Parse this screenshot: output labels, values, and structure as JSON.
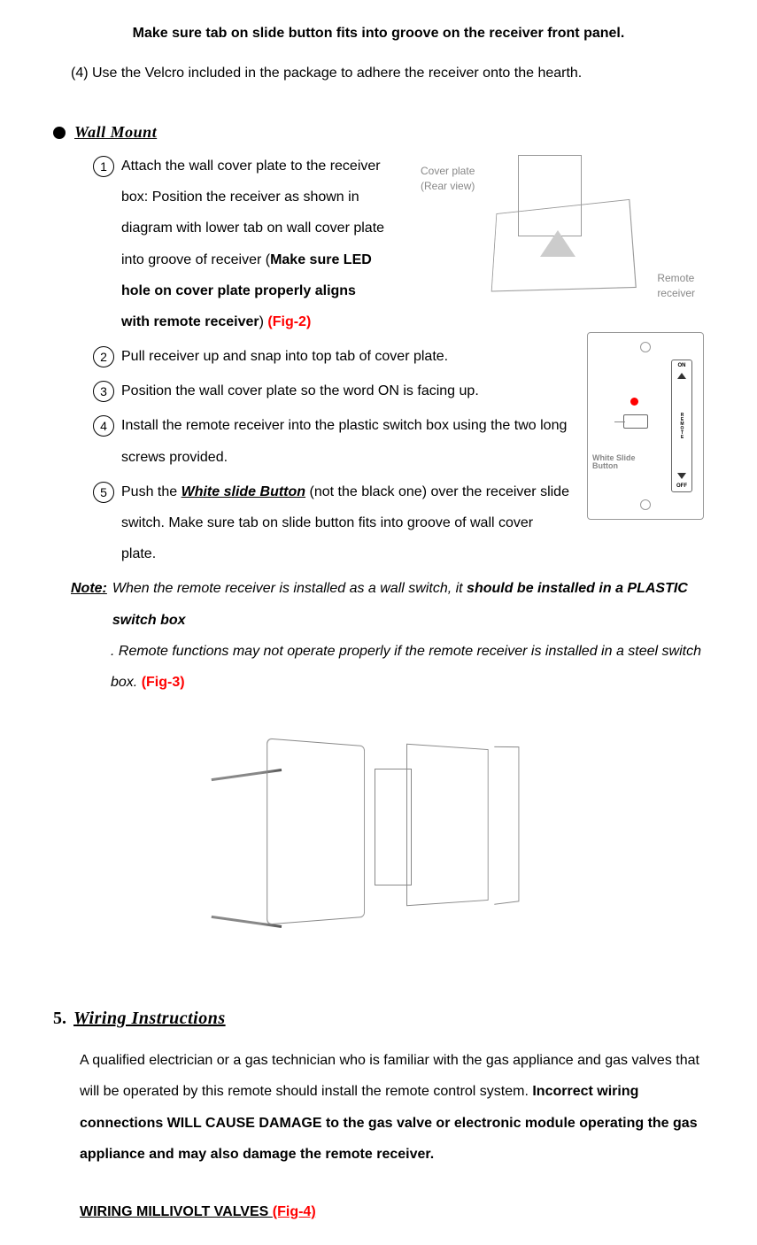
{
  "intro": {
    "line1": "Make sure tab on slide button fits into groove on the receiver front panel.",
    "line2": "(4) Use the Velcro included in the package to adhere the receiver onto the hearth."
  },
  "wall_mount": {
    "title": "Wall Mount",
    "items": [
      {
        "num": "1",
        "text_parts": {
          "a": "Attach the wall cover plate to the receiver box: Position the receiver as shown in diagram with lower tab on wall cover plate into groove of receiver (",
          "b": "Make sure LED hole on cover plate properly aligns with remote receiver",
          "c": ") ",
          "fig": "(Fig-2)"
        }
      },
      {
        "num": "2",
        "text": "Pull receiver up and snap into top tab of cover plate."
      },
      {
        "num": "3",
        "text": "Position the wall cover plate so the word ON is facing up."
      },
      {
        "num": "4",
        "text": "Install the remote receiver into the plastic switch box using the two long screws provided."
      },
      {
        "num": "5",
        "text_parts": {
          "a": "Push the ",
          "b": "White slide Button",
          "c": " (not the black one) over the receiver slide switch. Make sure tab on slide button fits into groove of wall cover plate."
        }
      }
    ],
    "diagram1": {
      "cover_plate_label": "Cover plate\n(Rear view)",
      "remote_receiver_label": "Remote\nreceiver"
    },
    "wall_plate": {
      "on": "ON",
      "off": "OFF",
      "remote": "REMOTE",
      "label": "White Slide Button"
    },
    "note": {
      "label": "Note:",
      "a": " When the remote receiver is installed as a wall switch, it ",
      "b": "should be installed in a PLASTIC switch box",
      "c": ". Remote functions may not operate properly if the remote receiver is installed in a steel switch box. ",
      "fig": "(Fig-3)"
    }
  },
  "section5": {
    "num": "5.",
    "title": "Wiring Instructions",
    "body_a": "A qualified electrician or a gas technician who is familiar with the gas appliance and gas valves that will be operated by this remote should install the remote control system. ",
    "body_b": "Incorrect wiring connections WILL CAUSE DAMAGE to the gas valve or electronic module operating the gas appliance and may also damage the remote receiver.",
    "sub_a": "WIRING MILLIVOLT VALVES ",
    "sub_fig": "(Fig-4)"
  },
  "colors": {
    "fig_red": "#ff0000",
    "led_red": "#ff0000",
    "diagram_gray": "#888888"
  }
}
